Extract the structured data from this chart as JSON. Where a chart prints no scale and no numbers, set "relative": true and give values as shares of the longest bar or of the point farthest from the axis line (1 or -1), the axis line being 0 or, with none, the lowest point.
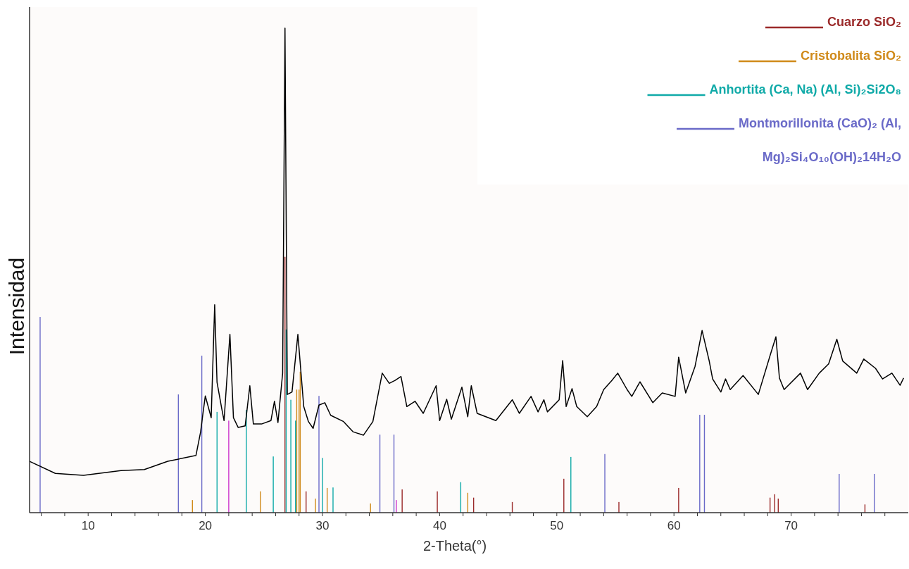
{
  "chart_data": {
    "type": "line",
    "xlabel": "2-Theta(°)",
    "ylabel": "Intensidad",
    "relative": true,
    "legend": "top right",
    "xlim": [
      5,
      80
    ],
    "xticks": [
      {
        "value": 6,
        "label": null
      },
      {
        "value": 8,
        "label": null
      },
      10,
      {
        "value": 12,
        "label": null
      },
      {
        "value": 14,
        "label": null
      },
      {
        "value": 16,
        "label": null
      },
      {
        "value": 18,
        "label": null
      },
      20,
      {
        "value": 22,
        "label": null
      },
      {
        "value": 24,
        "label": null
      },
      {
        "value": 26,
        "label": null
      },
      {
        "value": 28,
        "label": null
      },
      30,
      {
        "value": 32,
        "label": null
      },
      {
        "value": 34,
        "label": null
      },
      {
        "value": 36,
        "label": null
      },
      {
        "value": 38,
        "label": null
      },
      40,
      {
        "value": 42,
        "label": null
      },
      {
        "value": 44,
        "label": null
      },
      {
        "value": 46,
        "label": null
      },
      {
        "value": 48,
        "label": null
      },
      50,
      {
        "value": 52,
        "label": null
      },
      {
        "value": 54,
        "label": null
      },
      {
        "value": 56,
        "label": null
      },
      {
        "value": 58,
        "label": null
      },
      60,
      {
        "value": 62,
        "label": null
      },
      {
        "value": 64,
        "label": null
      },
      {
        "value": 66,
        "label": null
      },
      {
        "value": 68,
        "label": null
      },
      70,
      {
        "value": 72,
        "label": null
      },
      {
        "value": 74,
        "label": null
      },
      {
        "value": 76,
        "label": null
      },
      {
        "value": 78,
        "label": null
      }
    ],
    "series": [
      {
        "color": "#000000",
        "x": [
          5.0,
          7.2,
          9.6,
          12.8,
          14.8,
          16.8,
          19.2,
          19.6,
          19.8,
          20.0,
          20.5,
          20.8,
          21.0,
          21.4,
          21.6,
          22.1,
          22.4,
          22.8,
          23.4,
          23.8,
          24.1,
          24.8,
          25.6,
          25.9,
          26.2,
          26.6,
          26.8,
          27.0,
          27.4,
          27.9,
          28.4,
          28.8,
          29.2,
          29.7,
          30.2,
          30.7,
          31.8,
          32.6,
          33.5,
          34.3,
          35.1,
          35.7,
          36.2,
          36.7,
          37.2,
          37.9,
          38.6,
          39.7,
          40.0,
          40.6,
          41.0,
          41.9,
          42.4,
          42.7,
          43.2,
          44.8,
          46.2,
          46.8,
          47.8,
          48.4,
          48.9,
          49.2,
          50.2,
          50.5,
          50.8,
          51.3,
          51.7,
          52.6,
          53.4,
          54.0,
          54.7,
          55.2,
          56.0,
          56.4,
          57.1,
          58.2,
          59.0,
          60.1,
          60.4,
          61.0,
          61.8,
          62.4,
          63.0,
          63.3,
          64.0,
          64.4,
          64.8,
          65.9,
          67.2,
          68.2,
          68.7,
          69.0,
          69.4,
          70.8,
          71.4,
          72.4,
          73.2,
          73.9,
          74.4,
          75.6,
          76.2,
          77.2,
          77.8,
          78.6,
          79.3,
          79.6
        ],
        "values": [
          0.106,
          0.081,
          0.077,
          0.087,
          0.089,
          0.106,
          0.118,
          0.167,
          0.205,
          0.241,
          0.196,
          0.429,
          0.269,
          0.215,
          0.19,
          0.368,
          0.196,
          0.176,
          0.179,
          0.262,
          0.183,
          0.183,
          0.19,
          0.23,
          0.186,
          0.288,
          1.0,
          0.244,
          0.249,
          0.368,
          0.219,
          0.188,
          0.174,
          0.222,
          0.227,
          0.201,
          0.188,
          0.167,
          0.16,
          0.188,
          0.288,
          0.267,
          0.273,
          0.281,
          0.219,
          0.23,
          0.205,
          0.262,
          0.19,
          0.234,
          0.193,
          0.259,
          0.198,
          0.262,
          0.205,
          0.19,
          0.233,
          0.205,
          0.24,
          0.208,
          0.233,
          0.208,
          0.233,
          0.314,
          0.219,
          0.256,
          0.219,
          0.198,
          0.219,
          0.254,
          0.273,
          0.288,
          0.254,
          0.24,
          0.27,
          0.227,
          0.247,
          0.24,
          0.321,
          0.247,
          0.302,
          0.376,
          0.314,
          0.276,
          0.249,
          0.276,
          0.254,
          0.283,
          0.244,
          0.324,
          0.363,
          0.278,
          0.254,
          0.288,
          0.254,
          0.288,
          0.307,
          0.358,
          0.313,
          0.288,
          0.317,
          0.298,
          0.276,
          0.288,
          0.263,
          0.278
        ]
      },
      {
        "type": "bar",
        "name": "Cuarzo  SiO₂",
        "color": "#9b2a2a",
        "x": [
          26.8,
          28.6,
          36.8,
          39.8,
          42.9,
          46.2,
          50.6,
          55.3,
          60.4,
          68.2,
          68.6,
          68.9,
          76.3
        ],
        "values": [
          0.528,
          0.044,
          0.048,
          0.044,
          0.031,
          0.022,
          0.07,
          0.022,
          0.051,
          0.031,
          0.038,
          0.029,
          0.017
        ]
      },
      {
        "type": "bar",
        "name": "Cristobalita  SiO₂",
        "color": "#d08a1a",
        "x": [
          18.9,
          24.7,
          27.8,
          28.0,
          28.1,
          29.4,
          30.4,
          34.1,
          42.4
        ],
        "values": [
          0.026,
          0.044,
          0.254,
          0.254,
          0.291,
          0.029,
          0.051,
          0.019,
          0.041
        ]
      },
      {
        "type": "bar",
        "name": "Anhortita (Ca, Na) (Al, Si)₂Si2O₈",
        "color": "#10aaa8",
        "x": [
          21.0,
          23.5,
          25.8,
          26.9,
          27.3,
          27.7,
          30.0,
          30.9,
          41.8,
          51.2
        ],
        "values": [
          0.208,
          0.212,
          0.116,
          0.378,
          0.233,
          0.19,
          0.113,
          0.052,
          0.063,
          0.115
        ]
      },
      {
        "type": "bar",
        "name": "Montmorillonita (CaO)₂ (Al, Mg)₂Si₄O₁₀(OH)₂14H₂O",
        "color": "#6a6ac8",
        "x": [
          5.9,
          17.7,
          19.7,
          29.7,
          34.9,
          36.1,
          54.1,
          62.2,
          62.6,
          74.1,
          77.1
        ],
        "values": [
          0.404,
          0.244,
          0.324,
          0.241,
          0.161,
          0.161,
          0.121,
          0.202,
          0.202,
          0.08,
          0.08
        ]
      },
      {
        "type": "bar",
        "color": "#cc33cc",
        "x": [
          22.0,
          36.3
        ],
        "values": [
          0.19,
          0.026
        ]
      }
    ]
  }
}
